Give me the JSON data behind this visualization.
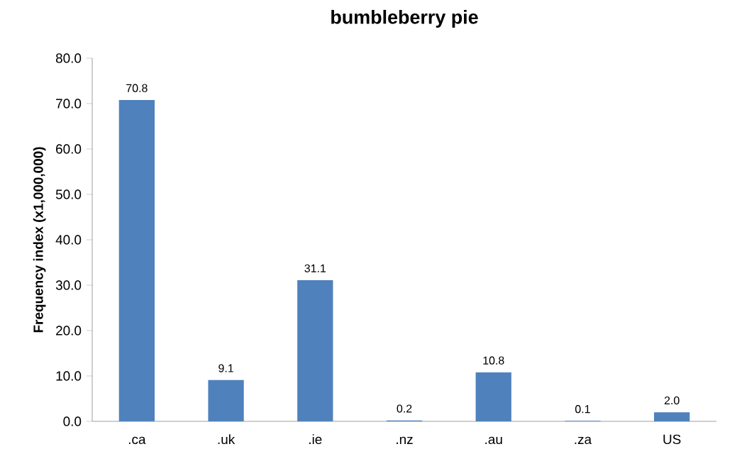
{
  "chart_data": {
    "type": "bar",
    "title": "bumbleberry pie",
    "ylabel": "Frequency index (x1,000,000)",
    "categories": [
      ".ca",
      ".uk",
      ".ie",
      ".nz",
      ".au",
      ".za",
      "US"
    ],
    "values": [
      70.8,
      9.1,
      31.1,
      0.2,
      10.8,
      0.1,
      2.0
    ],
    "value_labels": [
      "70.8",
      "9.1",
      "31.1",
      "0.2",
      "10.8",
      "0.1",
      "2.0"
    ],
    "color": "#4f81bd",
    "ylim": [
      0,
      80
    ],
    "yticks": [
      {
        "value": 0,
        "label": "0.0"
      },
      {
        "value": 10,
        "label": "10.0"
      },
      {
        "value": 20,
        "label": "20.0"
      },
      {
        "value": 30,
        "label": "30.0"
      },
      {
        "value": 40,
        "label": "40.0"
      },
      {
        "value": 50,
        "label": "50.0"
      },
      {
        "value": 60,
        "label": "60.0"
      },
      {
        "value": 70,
        "label": "70.0"
      },
      {
        "value": 80,
        "label": "80.0"
      }
    ],
    "grid": false
  }
}
